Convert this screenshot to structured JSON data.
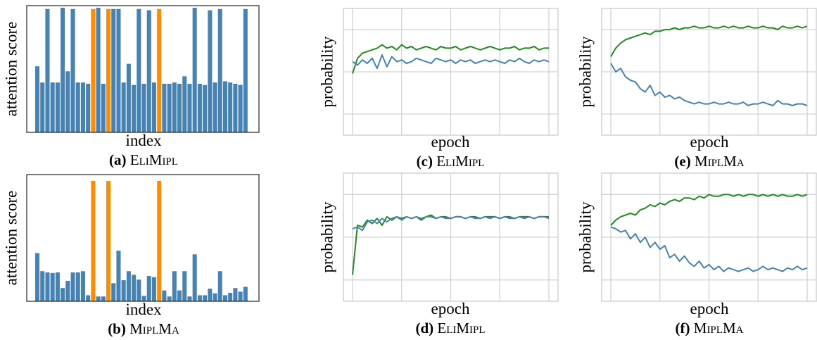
{
  "colors": {
    "bar": "#4682b4",
    "highlight": "#ff8c00",
    "line_blue": "#4682b4",
    "line_green": "#228b22",
    "grid": "#d3d3d3"
  },
  "chart_data": [
    {
      "id": "a",
      "type": "bar",
      "caption_tag": "(a)",
      "caption_name": "EliMipl",
      "xlabel": "index",
      "ylabel": "attention score",
      "grid": false,
      "ylim": [
        0,
        1.0
      ],
      "highlighted_indices": [
        11,
        14,
        24
      ],
      "values": [
        0.53,
        0.4,
        0.99,
        0.4,
        0.4,
        1.0,
        0.49,
        0.99,
        0.4,
        0.4,
        0.39,
        0.99,
        1.0,
        0.39,
        0.99,
        0.99,
        0.99,
        0.4,
        0.55,
        0.38,
        0.99,
        0.39,
        0.98,
        0.4,
        0.99,
        0.39,
        0.39,
        0.4,
        0.39,
        0.45,
        0.39,
        1.0,
        0.39,
        0.38,
        0.98,
        0.4,
        0.99,
        0.41,
        0.4,
        0.39,
        0.38,
        0.99
      ]
    },
    {
      "id": "b",
      "type": "bar",
      "caption_tag": "(b)",
      "caption_name": "MiplMa",
      "xlabel": "index",
      "ylabel": "attention score",
      "grid": false,
      "ylim": [
        0,
        1.0
      ],
      "highlighted_indices": [
        11,
        14,
        24
      ],
      "values": [
        0.4,
        0.25,
        0.24,
        0.235,
        0.24,
        0.11,
        0.17,
        0.24,
        0.24,
        0.25,
        0.05,
        1.0,
        0.04,
        0.04,
        1.0,
        0.15,
        0.42,
        0.175,
        0.25,
        0.22,
        0.18,
        0.045,
        0.21,
        0.2,
        1.0,
        0.09,
        0.04,
        0.25,
        0.09,
        0.25,
        0.04,
        0.39,
        0.05,
        0.05,
        0.105,
        0.066,
        0.25,
        0.05,
        0.07,
        0.11,
        0.08,
        0.12
      ]
    },
    {
      "id": "c",
      "type": "line",
      "caption_tag": "(c)",
      "caption_name": "EliMipl",
      "xlabel": "epoch",
      "ylabel": "probability",
      "grid": true,
      "ylim": [
        0.125,
        0.875
      ],
      "xlim": [
        0,
        200
      ],
      "x_step": 5,
      "series": [
        {
          "color": "green",
          "values": [
            0.49,
            0.58,
            0.61,
            0.62,
            0.63,
            0.64,
            0.66,
            0.64,
            0.65,
            0.63,
            0.66,
            0.64,
            0.65,
            0.63,
            0.64,
            0.65,
            0.64,
            0.63,
            0.65,
            0.64,
            0.64,
            0.65,
            0.63,
            0.64,
            0.65,
            0.64,
            0.63,
            0.64,
            0.65,
            0.64,
            0.63,
            0.64,
            0.64,
            0.65,
            0.63,
            0.64,
            0.64,
            0.65,
            0.63,
            0.64,
            0.64
          ]
        },
        {
          "color": "blue",
          "values": [
            0.56,
            0.54,
            0.57,
            0.55,
            0.58,
            0.52,
            0.6,
            0.53,
            0.59,
            0.56,
            0.57,
            0.55,
            0.56,
            0.58,
            0.57,
            0.56,
            0.55,
            0.58,
            0.57,
            0.56,
            0.57,
            0.55,
            0.57,
            0.56,
            0.57,
            0.55,
            0.56,
            0.57,
            0.56,
            0.57,
            0.56,
            0.55,
            0.57,
            0.56,
            0.58,
            0.56,
            0.55,
            0.57,
            0.56,
            0.57,
            0.56
          ]
        }
      ]
    },
    {
      "id": "d",
      "type": "line",
      "caption_tag": "(d)",
      "caption_name": "EliMipl",
      "xlabel": "epoch",
      "ylabel": "probability",
      "grid": true,
      "ylim": [
        0.125,
        0.875
      ],
      "xlim": [
        0,
        200
      ],
      "x_step": 5,
      "series": [
        {
          "color": "green",
          "values": [
            0.28,
            0.57,
            0.56,
            0.6,
            0.58,
            0.61,
            0.57,
            0.62,
            0.6,
            0.62,
            0.61,
            0.62,
            0.61,
            0.62,
            0.6,
            0.62,
            0.63,
            0.61,
            0.62,
            0.62,
            0.61,
            0.62,
            0.62,
            0.61,
            0.62,
            0.62,
            0.61,
            0.62,
            0.62,
            0.62,
            0.61,
            0.62,
            0.62,
            0.61,
            0.62,
            0.62,
            0.62,
            0.61,
            0.62,
            0.62,
            0.62
          ]
        },
        {
          "color": "blue",
          "values": [
            0.55,
            0.56,
            0.54,
            0.59,
            0.6,
            0.58,
            0.61,
            0.59,
            0.61,
            0.62,
            0.6,
            0.62,
            0.61,
            0.62,
            0.61,
            0.62,
            0.62,
            0.61,
            0.62,
            0.61,
            0.61,
            0.62,
            0.62,
            0.61,
            0.62,
            0.61,
            0.61,
            0.62,
            0.61,
            0.62,
            0.61,
            0.62,
            0.61,
            0.61,
            0.62,
            0.61,
            0.62,
            0.61,
            0.62,
            0.62,
            0.61
          ]
        }
      ]
    },
    {
      "id": "e",
      "type": "line",
      "caption_tag": "(e)",
      "caption_name": "MiplMa",
      "xlabel": "epoch",
      "ylabel": "probability",
      "grid": true,
      "ylim": [
        0.125,
        0.875
      ],
      "xlim": [
        0,
        200
      ],
      "x_step": 5,
      "series": [
        {
          "color": "green",
          "values": [
            0.59,
            0.64,
            0.67,
            0.69,
            0.7,
            0.71,
            0.72,
            0.73,
            0.72,
            0.74,
            0.74,
            0.75,
            0.75,
            0.76,
            0.75,
            0.76,
            0.76,
            0.77,
            0.76,
            0.76,
            0.77,
            0.76,
            0.76,
            0.77,
            0.76,
            0.77,
            0.76,
            0.76,
            0.77,
            0.76,
            0.76,
            0.77,
            0.76,
            0.76,
            0.75,
            0.77,
            0.76,
            0.76,
            0.77,
            0.76,
            0.77
          ]
        },
        {
          "color": "blue",
          "values": [
            0.55,
            0.5,
            0.52,
            0.47,
            0.45,
            0.44,
            0.4,
            0.38,
            0.42,
            0.36,
            0.38,
            0.35,
            0.36,
            0.34,
            0.35,
            0.33,
            0.32,
            0.31,
            0.32,
            0.31,
            0.31,
            0.32,
            0.31,
            0.31,
            0.32,
            0.31,
            0.31,
            0.32,
            0.3,
            0.31,
            0.31,
            0.32,
            0.31,
            0.3,
            0.33,
            0.31,
            0.31,
            0.3,
            0.31,
            0.31,
            0.3
          ]
        }
      ]
    },
    {
      "id": "f",
      "type": "line",
      "caption_tag": "(f)",
      "caption_name": "MiplMa",
      "xlabel": "epoch",
      "ylabel": "probability",
      "grid": true,
      "ylim": [
        0.125,
        0.875
      ],
      "xlim": [
        0,
        200
      ],
      "x_step": 5,
      "series": [
        {
          "color": "green",
          "values": [
            0.57,
            0.6,
            0.62,
            0.63,
            0.64,
            0.63,
            0.66,
            0.67,
            0.69,
            0.68,
            0.7,
            0.69,
            0.71,
            0.72,
            0.71,
            0.73,
            0.73,
            0.72,
            0.74,
            0.73,
            0.75,
            0.74,
            0.74,
            0.75,
            0.75,
            0.74,
            0.75,
            0.74,
            0.75,
            0.75,
            0.74,
            0.75,
            0.74,
            0.75,
            0.74,
            0.75,
            0.74,
            0.74,
            0.75,
            0.74,
            0.75
          ]
        },
        {
          "color": "blue",
          "values": [
            0.56,
            0.55,
            0.53,
            0.54,
            0.49,
            0.52,
            0.47,
            0.5,
            0.44,
            0.47,
            0.43,
            0.45,
            0.38,
            0.4,
            0.36,
            0.39,
            0.35,
            0.33,
            0.36,
            0.32,
            0.34,
            0.31,
            0.33,
            0.3,
            0.32,
            0.31,
            0.3,
            0.31,
            0.32,
            0.3,
            0.31,
            0.33,
            0.31,
            0.32,
            0.31,
            0.3,
            0.32,
            0.31,
            0.33,
            0.31,
            0.32
          ]
        }
      ]
    }
  ]
}
